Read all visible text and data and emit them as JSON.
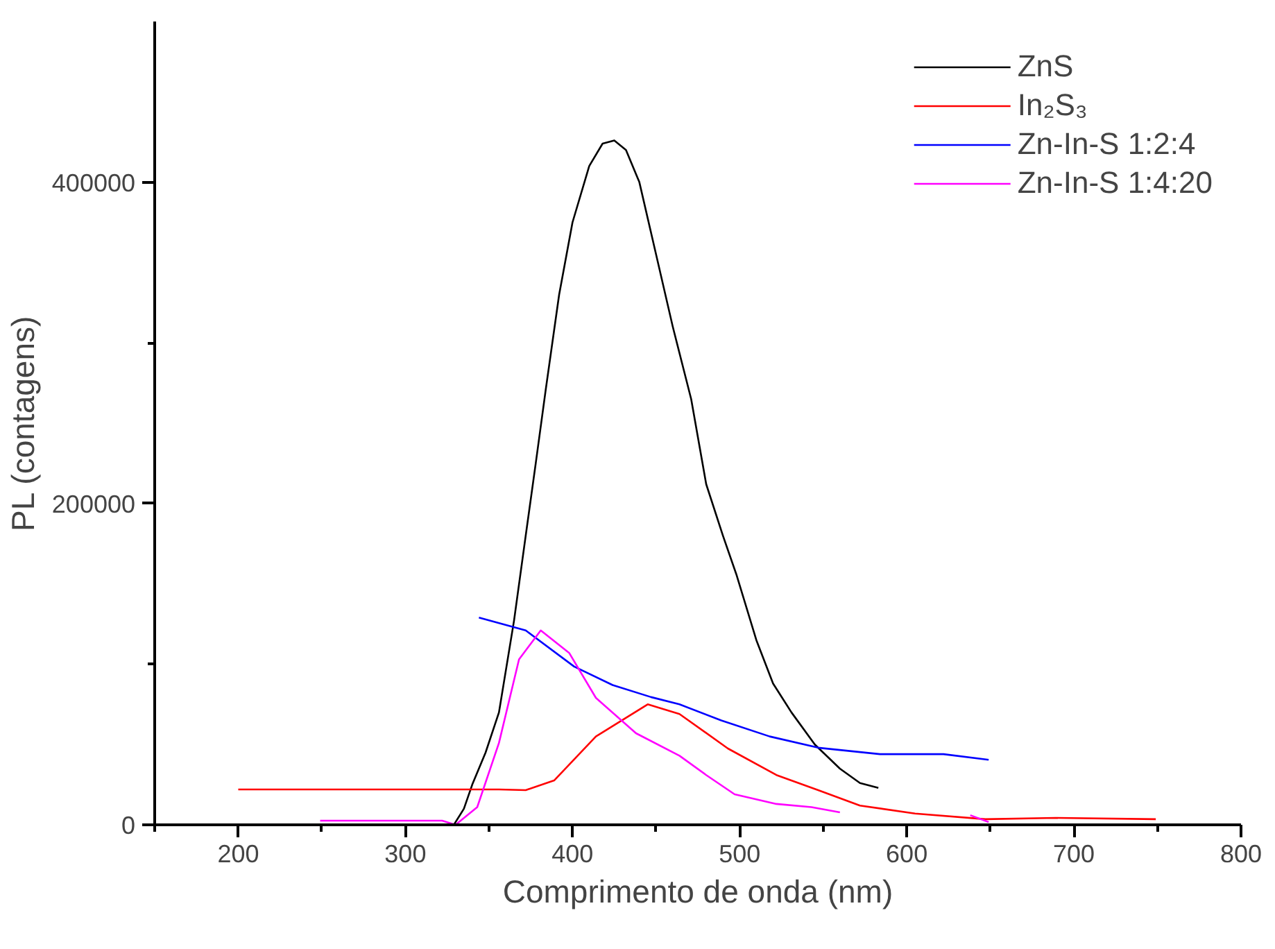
{
  "chart_data": {
    "type": "line",
    "xlabel": "Comprimento de onda (nm)",
    "ylabel": "PL (contagens)",
    "xlim": [
      150,
      800
    ],
    "ylim": [
      0,
      500000
    ],
    "xticks": [
      {
        "value": 150,
        "label": null
      },
      200,
      {
        "value": 250,
        "label": null
      },
      300,
      {
        "value": 350,
        "label": null
      },
      400,
      {
        "value": 450,
        "label": null
      },
      500,
      {
        "value": 550,
        "label": null
      },
      600,
      {
        "value": 650,
        "label": null
      },
      700,
      {
        "value": 750,
        "label": null
      },
      800
    ],
    "yticks": [
      0,
      {
        "value": 100000,
        "label": null
      },
      200000,
      {
        "value": 300000,
        "label": null
      },
      400000
    ],
    "grid": false,
    "legend": "top right",
    "marker": "none",
    "line_style": "solid",
    "series": [
      {
        "name": "ZnS",
        "color": "#000000",
        "x": [
          329,
          335,
          340,
          348,
          356,
          365,
          372,
          378,
          384,
          392,
          400,
          410,
          418,
          425,
          432,
          440,
          450,
          460,
          471,
          480,
          490,
          498,
          510,
          520,
          531,
          545,
          560,
          572,
          583
        ],
        "values": [
          0,
          10000,
          25000,
          45000,
          70000,
          127000,
          180000,
          225000,
          271000,
          330000,
          375000,
          410000,
          424000,
          426000,
          420000,
          400000,
          355000,
          310000,
          265000,
          212000,
          180000,
          156000,
          115000,
          88000,
          70000,
          50000,
          35000,
          26000,
          23000
        ]
      },
      {
        "name": "In₂S₃",
        "color": "#ff0000",
        "x": [
          200,
          356,
          372,
          389,
          414,
          445,
          464,
          493,
          522,
          547,
          572,
          605,
          647,
          689,
          749
        ],
        "values": [
          22000,
          22000,
          21600,
          27600,
          55000,
          75000,
          69000,
          47500,
          31000,
          21600,
          12000,
          7000,
          3500,
          4300,
          3500
        ]
      },
      {
        "name": "Zn-In-S 1:2:4",
        "color": "#0000ff",
        "x": [
          344,
          372,
          401,
          424,
          447,
          464,
          489,
          518,
          547,
          584,
          622,
          649
        ],
        "values": [
          129000,
          121000,
          98500,
          87000,
          79500,
          75000,
          65000,
          55000,
          48000,
          44000,
          44000,
          40500
        ]
      },
      {
        "name": "Zn-In-S 1:4:20",
        "color": "#ff00ff",
        "x": [
          249,
          322,
          330,
          343,
          356,
          368,
          381,
          398,
          414,
          438,
          464,
          480,
          497,
          522,
          543,
          560,
          600,
          638,
          649
        ],
        "values": [
          2600,
          2600,
          0,
          11000,
          51000,
          103000,
          121000,
          107000,
          79000,
          57000,
          43000,
          31000,
          19000,
          13000,
          11000,
          7800,
          null,
          6000,
          1700
        ]
      }
    ]
  }
}
